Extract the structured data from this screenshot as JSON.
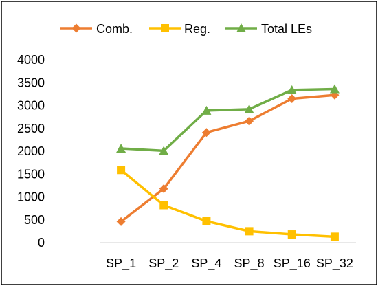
{
  "chart_data": {
    "type": "line",
    "categories": [
      "SP_1",
      "SP_2",
      "SP_4",
      "SP_8",
      "SP_16",
      "SP_32"
    ],
    "series": [
      {
        "name": "Comb.",
        "color": "#ED7D31",
        "marker": "diamond",
        "values": [
          460,
          1180,
          2410,
          2660,
          3150,
          3230
        ]
      },
      {
        "name": "Reg.",
        "color": "#FFC000",
        "marker": "square",
        "values": [
          1590,
          820,
          470,
          250,
          180,
          130
        ]
      },
      {
        "name": "Total LEs",
        "color": "#70AD47",
        "marker": "triangle",
        "values": [
          2060,
          2010,
          2890,
          2920,
          3340,
          3360
        ]
      }
    ],
    "yticks": [
      "4000",
      "3500",
      "3000",
      "2500",
      "2000",
      "1500",
      "1000",
      "500",
      "0"
    ],
    "ylim": [
      0,
      4000
    ],
    "grid": false,
    "legend_position": "top"
  }
}
